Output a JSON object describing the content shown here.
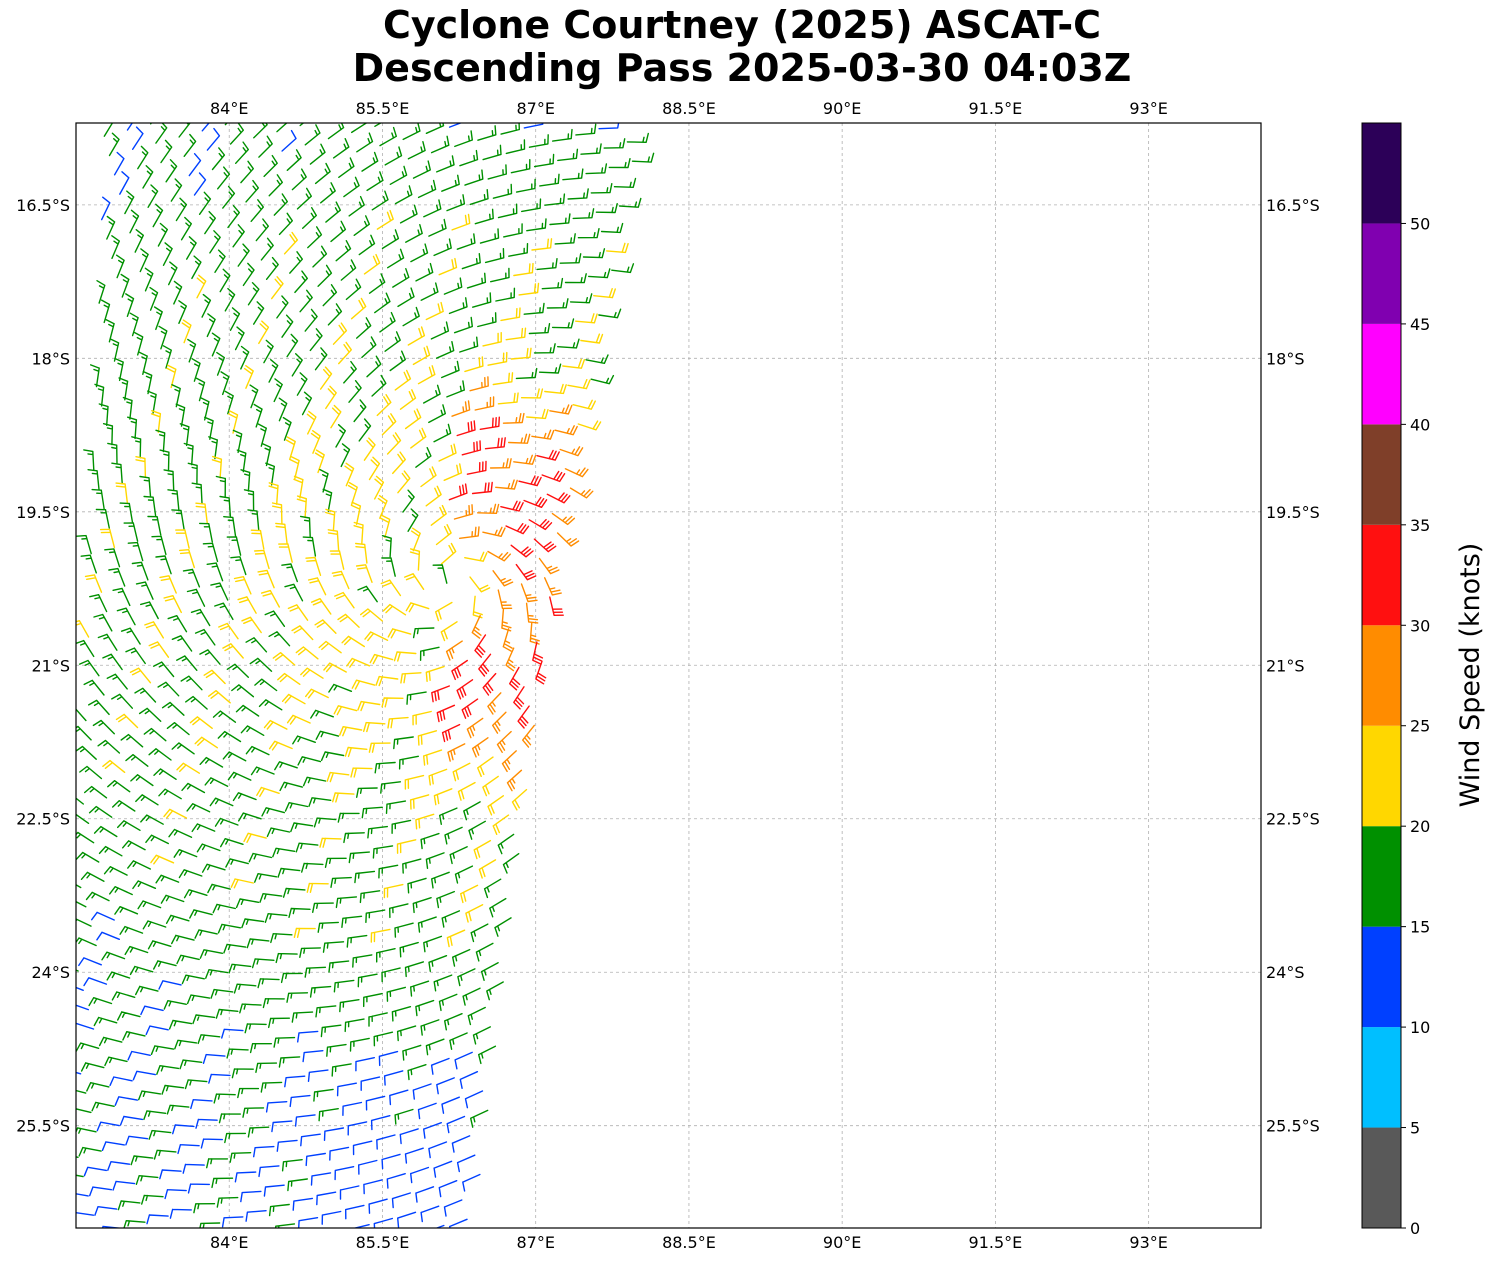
{
  "title": {
    "line1": "Cyclone Courtney (2025) ASCAT-C",
    "line2": "Descending Pass 2025-03-30 04:03Z"
  },
  "map": {
    "lon_range": [
      82.5,
      94.1
    ],
    "lat_range": [
      -26.5,
      -15.7
    ],
    "lon_ticks": [
      84,
      85.5,
      87,
      88.5,
      90,
      91.5,
      93
    ],
    "lon_tick_labels": [
      "84°E",
      "85.5°E",
      "87°E",
      "88.5°E",
      "90°E",
      "91.5°E",
      "93°E"
    ],
    "lat_ticks": [
      -16.5,
      -18,
      -19.5,
      -21,
      -22.5,
      -24,
      -25.5
    ],
    "lat_tick_labels": [
      "16.5°S",
      "18°S",
      "19.5°S",
      "21°S",
      "22.5°S",
      "24°S",
      "25.5°S"
    ],
    "grid": true,
    "wind_center": {
      "lon": 86.15,
      "lat": -20.2
    }
  },
  "colorbar": {
    "label": "Wind Speed (knots)",
    "tick_values": [
      0,
      5,
      10,
      15,
      20,
      25,
      30,
      35,
      40,
      45,
      50
    ],
    "tick_labels": [
      "0",
      "5",
      "10",
      "15",
      "20",
      "25",
      "30",
      "35",
      "40",
      "45",
      "50"
    ],
    "max": 55,
    "bins": [
      {
        "range": [
          0,
          5
        ],
        "color": "#595959"
      },
      {
        "range": [
          5,
          10
        ],
        "color": "#00bfff"
      },
      {
        "range": [
          10,
          15
        ],
        "color": "#0040ff"
      },
      {
        "range": [
          15,
          20
        ],
        "color": "#009000"
      },
      {
        "range": [
          20,
          25
        ],
        "color": "#ffd700"
      },
      {
        "range": [
          25,
          30
        ],
        "color": "#ff8c00"
      },
      {
        "range": [
          30,
          35
        ],
        "color": "#ff1010"
      },
      {
        "range": [
          35,
          40
        ],
        "color": "#7f3f29"
      },
      {
        "range": [
          40,
          45
        ],
        "color": "#ff00ff"
      },
      {
        "range": [
          45,
          50
        ],
        "color": "#8000b0"
      },
      {
        "range": [
          50,
          55
        ],
        "color": "#2c0058"
      }
    ]
  }
}
